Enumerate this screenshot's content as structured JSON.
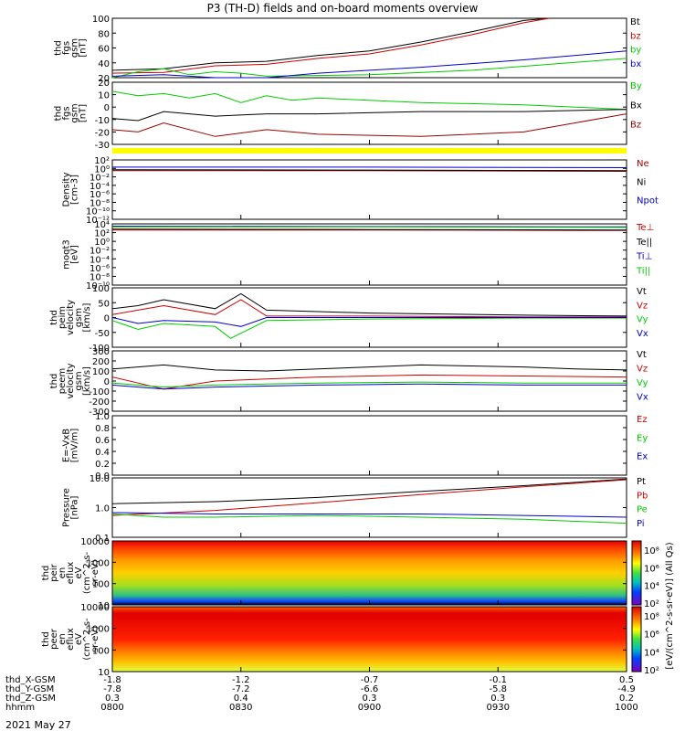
{
  "chart_data": {
    "type": "line",
    "title": "P3 (TH-D) fields and on-board moments overview",
    "date": "2021 May 27",
    "time_range": [
      "0800",
      "1000"
    ],
    "panels": [
      {
        "id": "fgs-total",
        "ylabel": [
          "thd",
          "fgs",
          "gsm",
          "[nT]"
        ],
        "ylim": [
          20,
          100
        ],
        "yticks": [
          "100",
          "80",
          "60",
          "40",
          "20"
        ],
        "scale": "linear",
        "series": [
          {
            "name": "Bt",
            "color": "#000000",
            "x": [
              0,
              0.1,
              0.2,
              0.3,
              0.4,
              0.5,
              0.6,
              0.7,
              0.8,
              0.85
            ],
            "y": [
              30,
              32,
              40,
              42,
              50,
              56,
              68,
              82,
              97,
              100
            ]
          },
          {
            "name": "bz",
            "color": "#cc0000",
            "x": [
              0,
              0.1,
              0.2,
              0.3,
              0.4,
              0.5,
              0.6,
              0.7,
              0.8,
              0.85
            ],
            "y": [
              26,
              27,
              36,
              38,
              46,
              52,
              64,
              78,
              94,
              100
            ]
          },
          {
            "name": "by",
            "color": "#00cc00",
            "x": [
              0,
              0.05,
              0.1,
              0.15,
              0.2,
              0.25,
              0.3,
              0.5,
              0.7,
              0.85,
              1.0
            ],
            "y": [
              20,
              28,
              32,
              24,
              28,
              26,
              22,
              24,
              30,
              38,
              46
            ]
          },
          {
            "name": "bx",
            "color": "#0000cc",
            "x": [
              0,
              0.1,
              0.2,
              0.3,
              0.4,
              0.6,
              0.8,
              1.0
            ],
            "y": [
              22,
              24,
              18,
              20,
              26,
              34,
              44,
              56
            ]
          }
        ]
      },
      {
        "id": "fgs-comp",
        "ylabel": [
          "thd",
          "fgs",
          "gsm",
          "[nT]"
        ],
        "ylim": [
          -35,
          20
        ],
        "yticks": [
          "20",
          "10",
          "0",
          "-10",
          "-20",
          "-30"
        ],
        "scale": "linear",
        "series": [
          {
            "name": "By",
            "color": "#00cc00",
            "x": [
              0,
              0.05,
              0.1,
              0.15,
              0.2,
              0.25,
              0.3,
              0.35,
              0.4,
              0.6,
              0.8,
              1.0
            ],
            "y": [
              12,
              8,
              10,
              6,
              10,
              2,
              8,
              4,
              6,
              2,
              0,
              -4
            ]
          },
          {
            "name": "Bx",
            "color": "#000000",
            "x": [
              0,
              0.05,
              0.1,
              0.2,
              0.3,
              0.4,
              0.6,
              0.8,
              1.0
            ],
            "y": [
              -12,
              -14,
              -6,
              -10,
              -8,
              -8,
              -6,
              -6,
              -4
            ]
          },
          {
            "name": "Bz",
            "color": "#990000",
            "x": [
              0,
              0.05,
              0.1,
              0.2,
              0.3,
              0.4,
              0.6,
              0.8,
              0.9,
              1.0
            ],
            "y": [
              -22,
              -24,
              -16,
              -28,
              -22,
              -26,
              -28,
              -24,
              -16,
              -8
            ]
          }
        ]
      },
      {
        "id": "density",
        "ylabel": [
          "Density",
          "[cm-3]"
        ],
        "ylim": [
          1e-12,
          100
        ],
        "yticks": [
          "10²",
          "10⁰",
          "10⁻²",
          "10⁻⁴",
          "10⁻⁶",
          "10⁻⁸",
          "10⁻¹⁰",
          "10⁻¹²"
        ],
        "scale": "log",
        "series": [
          {
            "name": "Ne",
            "color": "#990000",
            "x": [
              0,
              0.5,
              1.0
            ],
            "y": [
              0.3,
              0.3,
              0.2
            ]
          },
          {
            "name": "Ni",
            "color": "#000000",
            "x": [
              0,
              0.5,
              1.0
            ],
            "y": [
              0.5,
              0.4,
              0.3
            ]
          },
          {
            "name": "Npot",
            "color": "#0000cc",
            "x": [
              0,
              0.5,
              1.0
            ],
            "y": [
              2,
              2,
              1.5
            ]
          }
        ]
      },
      {
        "id": "temperature",
        "ylabel": [
          "moqt3",
          "[eV]"
        ],
        "ylim": [
          1e-10,
          10000
        ],
        "yticks": [
          "10⁴",
          "10²",
          "10⁰",
          "10⁻²",
          "10⁻⁴",
          "10⁻⁶",
          "10⁻⁸",
          "10⁻¹⁰"
        ],
        "scale": "log",
        "series": [
          {
            "name": "Te⊥",
            "color": "#cc0000",
            "x": [
              0,
              0.5,
              1.0
            ],
            "y": [
              400,
              400,
              300
            ]
          },
          {
            "name": "Te||",
            "color": "#000000",
            "x": [
              0,
              0.5,
              1.0
            ],
            "y": [
              600,
              500,
              400
            ]
          },
          {
            "name": "Ti⊥",
            "color": "#0000cc",
            "x": [
              0,
              0.5,
              1.0
            ],
            "y": [
              3000,
              2500,
              2000
            ]
          },
          {
            "name": "Ti||",
            "color": "#00cc00",
            "x": [
              0,
              0.5,
              1.0
            ],
            "y": [
              2000,
              2000,
              1500
            ]
          }
        ]
      },
      {
        "id": "peim-velocity",
        "ylabel": [
          "thd",
          "peim",
          "velocity",
          "gsm",
          "[km/s]"
        ],
        "ylim": [
          -100,
          100
        ],
        "yticks": [
          "100",
          "50",
          "0",
          "-50",
          "-100"
        ],
        "scale": "linear",
        "series": [
          {
            "name": "Vt",
            "color": "#000000",
            "x": [
              0,
              0.05,
              0.1,
              0.2,
              0.25,
              0.3,
              0.5,
              0.8,
              1.0
            ],
            "y": [
              30,
              40,
              60,
              30,
              80,
              25,
              15,
              8,
              5
            ]
          },
          {
            "name": "Vz",
            "color": "#cc0000",
            "x": [
              0,
              0.05,
              0.1,
              0.2,
              0.25,
              0.3,
              0.5,
              0.8,
              1.0
            ],
            "y": [
              10,
              25,
              40,
              10,
              60,
              5,
              5,
              2,
              2
            ]
          },
          {
            "name": "Vy",
            "color": "#00cc00",
            "x": [
              0,
              0.05,
              0.1,
              0.2,
              0.23,
              0.3,
              0.5,
              0.8,
              1.0
            ],
            "y": [
              -10,
              -40,
              -20,
              -30,
              -70,
              -10,
              -5,
              -2,
              -2
            ]
          },
          {
            "name": "Vx",
            "color": "#0000cc",
            "x": [
              0,
              0.05,
              0.1,
              0.2,
              0.25,
              0.3,
              0.5,
              0.8,
              1.0
            ],
            "y": [
              0,
              -20,
              -10,
              -15,
              -30,
              0,
              0,
              0,
              0
            ]
          }
        ]
      },
      {
        "id": "peem-velocity",
        "ylabel": [
          "thd",
          "peem",
          "velocity",
          "gsm",
          "[km/s]"
        ],
        "ylim": [
          -300,
          300
        ],
        "yticks": [
          "300",
          "200",
          "100",
          "0",
          "-100",
          "-200",
          "-300"
        ],
        "scale": "linear",
        "series": [
          {
            "name": "Vt",
            "color": "#000000",
            "x": [
              0,
              0.1,
              0.2,
              0.3,
              0.4,
              0.5,
              0.6,
              0.7,
              0.8,
              0.9,
              1.0
            ],
            "y": [
              120,
              160,
              110,
              100,
              120,
              140,
              160,
              150,
              140,
              120,
              110
            ]
          },
          {
            "name": "Vz",
            "color": "#cc0000",
            "x": [
              0,
              0.1,
              0.2,
              0.3,
              0.4,
              0.6,
              0.8,
              1.0
            ],
            "y": [
              40,
              -80,
              0,
              20,
              40,
              60,
              50,
              40
            ]
          },
          {
            "name": "Vy",
            "color": "#00cc00",
            "x": [
              0,
              0.1,
              0.2,
              0.3,
              0.4,
              0.6,
              0.8,
              1.0
            ],
            "y": [
              -20,
              -60,
              -40,
              -30,
              -20,
              -10,
              -20,
              -20
            ]
          },
          {
            "name": "Vx",
            "color": "#0000cc",
            "x": [
              0,
              0.1,
              0.2,
              0.3,
              0.4,
              0.6,
              0.8,
              1.0
            ],
            "y": [
              -40,
              -80,
              -60,
              -50,
              -40,
              -30,
              -40,
              -40
            ]
          }
        ]
      },
      {
        "id": "efield",
        "ylabel": [
          "E=-VxB",
          "[mV/m]"
        ],
        "ylim": [
          0,
          1.0
        ],
        "yticks": [
          "1.0",
          "0.8",
          "0.6",
          "0.4",
          "0.2",
          "0.0"
        ],
        "scale": "linear",
        "series": [
          {
            "name": "Ez",
            "color": "#cc0000",
            "x": [],
            "y": []
          },
          {
            "name": "Ey",
            "color": "#00cc00",
            "x": [],
            "y": []
          },
          {
            "name": "Ex",
            "color": "#0000cc",
            "x": [],
            "y": []
          }
        ]
      },
      {
        "id": "pressure",
        "ylabel": [
          "Pressure",
          "[nPa]"
        ],
        "ylim": [
          0.1,
          20
        ],
        "yticks": [
          "10.0",
          "1.0",
          "0.1"
        ],
        "scale": "log",
        "series": [
          {
            "name": "Pt",
            "color": "#000000",
            "x": [
              0,
              0.2,
              0.4,
              0.6,
              0.8,
              1.0
            ],
            "y": [
              2,
              2.4,
              3.5,
              6,
              10,
              18
            ]
          },
          {
            "name": "Pb",
            "color": "#cc0000",
            "x": [
              0,
              0.2,
              0.4,
              0.6,
              0.8,
              1.0
            ],
            "y": [
              0.7,
              1.1,
              2.2,
              4.5,
              9,
              17
            ]
          },
          {
            "name": "Pe",
            "color": "#00cc00",
            "x": [
              0,
              0.1,
              0.2,
              0.4,
              0.6,
              0.8,
              1.0
            ],
            "y": [
              0.8,
              0.6,
              0.6,
              0.7,
              0.6,
              0.5,
              0.35
            ]
          },
          {
            "name": "Pi",
            "color": "#0000cc",
            "x": [
              0,
              0.2,
              0.4,
              0.6,
              0.8,
              1.0
            ],
            "y": [
              0.9,
              0.8,
              0.8,
              0.8,
              0.7,
              0.6
            ]
          }
        ]
      },
      {
        "id": "peir-spec",
        "type": "heatmap",
        "ylabel": [
          "thd",
          "peir",
          "en",
          "eflux",
          "eV",
          "(cm^2-s-",
          "sr-eV)"
        ],
        "ylim": [
          10,
          10000
        ],
        "yticks": [
          "10000",
          "1000",
          "100",
          "10"
        ],
        "scale": "log"
      },
      {
        "id": "peer-spec",
        "type": "heatmap",
        "ylabel": [
          "thd",
          "peer",
          "en",
          "eflux",
          "eV",
          "(cm^2-s-",
          "sr-eV)"
        ],
        "ylim": [
          10,
          10000
        ],
        "yticks": [
          "10000",
          "1000",
          "100",
          "10"
        ],
        "scale": "log"
      }
    ],
    "colorbar": {
      "ticks": [
        "10⁸",
        "10⁶",
        "10⁴",
        "10²",
        "10⁸",
        "10⁶",
        "10⁴",
        "10²"
      ],
      "label": "[eV/(cm^2-s-sr-eV)] (All Qs)"
    },
    "xaxis": {
      "rows": [
        {
          "label": "thd_X-GSM",
          "values": [
            "-1.8",
            "-1.2",
            "-0.7",
            "-0.1",
            "0.5"
          ]
        },
        {
          "label": "thd_Y-GSM",
          "values": [
            "-7.8",
            "-7.2",
            "-6.6",
            "-5.8",
            "-4.9"
          ]
        },
        {
          "label": "thd_Z-GSM",
          "values": [
            "0.3",
            "0.4",
            "0.3",
            "0.3",
            "0.2"
          ]
        },
        {
          "label": "hhmm",
          "values": [
            "0800",
            "0830",
            "0900",
            "0930",
            "1000"
          ]
        }
      ]
    }
  }
}
